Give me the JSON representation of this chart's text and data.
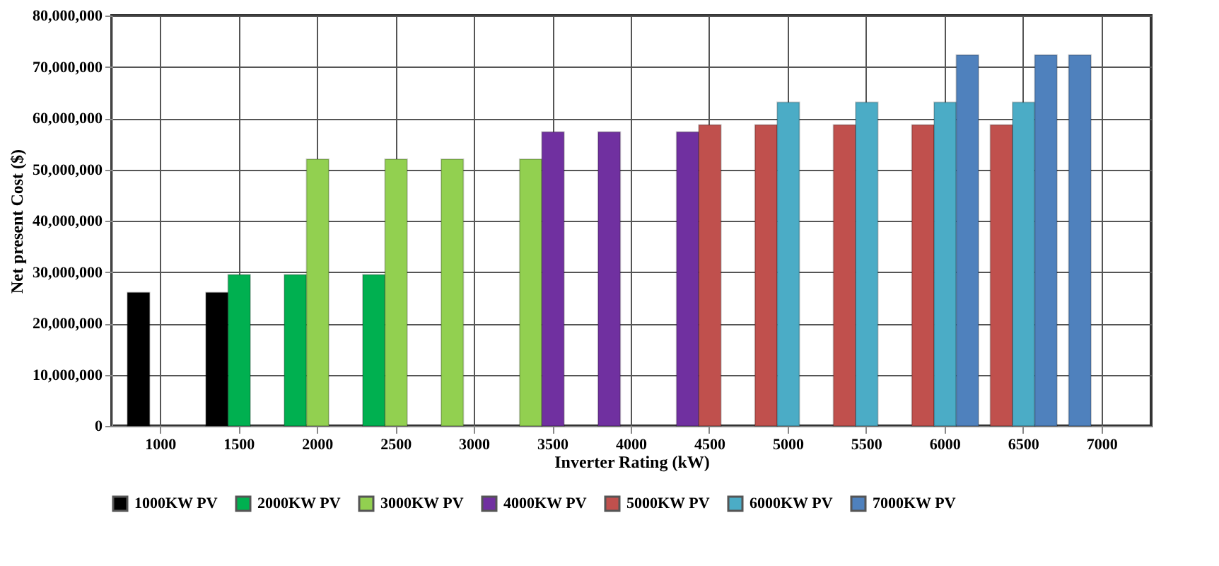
{
  "chart_data": {
    "type": "bar",
    "xlabel": "Inverter Rating (kW)",
    "ylabel": "Net present Cost ($)",
    "categories": [
      "1000",
      "1500",
      "2000",
      "2500",
      "3000",
      "3500",
      "4000",
      "4500",
      "5000",
      "5500",
      "6000",
      "6500",
      "7000"
    ],
    "series": [
      {
        "name": "1000KW PV",
        "color": "#000000",
        "values": [
          26000000,
          26000000,
          null,
          null,
          null,
          null,
          null,
          null,
          null,
          null,
          null,
          null,
          null
        ]
      },
      {
        "name": "2000KW PV",
        "color": "#00b050",
        "values": [
          null,
          29500000,
          29500000,
          29500000,
          null,
          null,
          null,
          null,
          null,
          null,
          null,
          null,
          null
        ]
      },
      {
        "name": "3000KW PV",
        "color": "#92d050",
        "values": [
          null,
          null,
          52000000,
          52000000,
          52000000,
          52000000,
          null,
          null,
          null,
          null,
          null,
          null,
          null
        ]
      },
      {
        "name": "4000KW PV",
        "color": "#7030a0",
        "values": [
          null,
          null,
          null,
          null,
          null,
          57300000,
          57300000,
          57300000,
          null,
          null,
          null,
          null,
          null
        ]
      },
      {
        "name": "5000KW PV",
        "color": "#c0504d",
        "values": [
          null,
          null,
          null,
          null,
          null,
          null,
          null,
          58700000,
          58700000,
          58700000,
          58700000,
          58700000,
          null
        ]
      },
      {
        "name": "6000KW PV",
        "color": "#4bacc6",
        "values": [
          null,
          null,
          null,
          null,
          null,
          null,
          null,
          null,
          63100000,
          63100000,
          63100000,
          63100000,
          null
        ]
      },
      {
        "name": "7000KW PV",
        "color": "#4f81bd",
        "values": [
          null,
          null,
          null,
          null,
          null,
          null,
          null,
          null,
          null,
          null,
          72300000,
          72300000,
          72300000
        ]
      }
    ],
    "ylim": [
      0,
      80000000
    ],
    "yticks": [
      0,
      {
        "value": 10000000,
        "label": "10,000,000"
      },
      {
        "value": 20000000,
        "label": "20,000,000"
      },
      {
        "value": 30000000,
        "label": "30,000,000"
      },
      {
        "value": 40000000,
        "label": "40,000,000"
      },
      {
        "value": 50000000,
        "label": "50,000,000"
      },
      {
        "value": 60000000,
        "label": "60,000,000"
      },
      {
        "value": 70000000,
        "label": "70,000,000"
      },
      {
        "value": 80000000,
        "label": "80,000,000"
      }
    ],
    "grid": true,
    "legend": "bottom"
  }
}
